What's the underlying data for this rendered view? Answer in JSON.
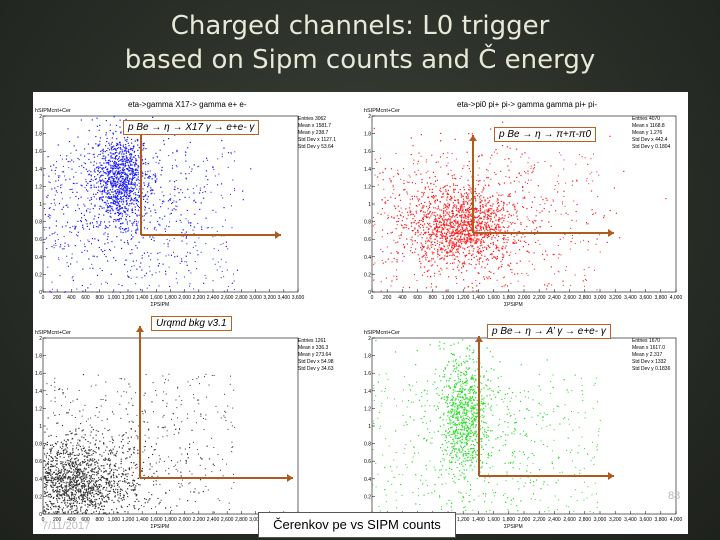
{
  "slide": {
    "title_line1": "Charged channels: L0 trigger",
    "title_line2": "based on Sipm counts and Č energy",
    "date": "7/11/2017",
    "page_number": "88",
    "x_caption": "Čerenkov pe vs SIPM counts"
  },
  "chart_data": [
    {
      "type": "scatter",
      "title": "eta->gamma X17-> gamma e+ e-",
      "annotation": "p Be → η → X17 γ → e+e- γ",
      "hist_name": "hSIPMcnt+Cer",
      "color": "#1a1aff",
      "stats": {
        "Entries": "3062",
        "Mean x": "1581.7",
        "Mean y": "238.7",
        "Std Dev x": "1127.1",
        "Std Dev y": "53.64"
      },
      "xlim": [
        0,
        3600
      ],
      "ylim": [
        0,
        2
      ],
      "xticks": [
        "0",
        "200",
        "400",
        "600",
        "800",
        "1,000",
        "1,200",
        "1,400",
        "1,600",
        "1,800",
        "2,000",
        "2,200",
        "2,400",
        "2,600",
        "2,800",
        "3,000",
        "3,200",
        "3,400",
        "3,600"
      ],
      "yticks": [
        "0",
        "0.2",
        "0.4",
        "0.6",
        "0.8",
        "1",
        "1.2",
        "1.4",
        "1.6",
        "1.8",
        "2"
      ],
      "xlabel": "ΣPSIPM",
      "clusters": [
        {
          "cx": 1100,
          "cy": 1.3,
          "sx": 180,
          "sy": 0.25,
          "n": 900
        },
        {
          "cx": 1100,
          "cy": 1.0,
          "sx": 700,
          "sy": 0.45,
          "n": 600
        }
      ]
    },
    {
      "type": "scatter",
      "title": "eta->pi0 pi+ pi-> gamma gamma pi+ pi-",
      "annotation": "p Be → η → π+π-π0",
      "hist_name": "hSIPMcnt+Cer",
      "color": "#ff1a1a",
      "stats": {
        "Entries": "4070",
        "Mean x": "1168.8",
        "Mean y": "1.276",
        "Std Dev x": "442.4",
        "Std Dev y": "0.1804"
      },
      "xlim": [
        0,
        4000
      ],
      "ylim": [
        0,
        2
      ],
      "xticks": [
        "0",
        "200",
        "400",
        "600",
        "800",
        "1,000",
        "1,200",
        "1,400",
        "1,600",
        "1,800",
        "2,000",
        "2,200",
        "2,400",
        "2,600",
        "2,800",
        "3,000",
        "3,200",
        "3,400",
        "3,600",
        "3,800",
        "4,000"
      ],
      "yticks": [
        "0",
        "0.2",
        "0.4",
        "0.6",
        "0.8",
        "1",
        "1.2",
        "1.4",
        "1.6",
        "1.8",
        "2"
      ],
      "xlabel": "ΣPSIPM",
      "clusters": [
        {
          "cx": 1150,
          "cy": 0.75,
          "sx": 380,
          "sy": 0.22,
          "n": 1300
        },
        {
          "cx": 1200,
          "cy": 0.9,
          "sx": 900,
          "sy": 0.5,
          "n": 400
        }
      ]
    },
    {
      "type": "scatter",
      "title": "",
      "annotation": "Urqmd bkg v3.1",
      "hist_name": "hSIPMcnt+Cer",
      "color": "#333333",
      "stats": {
        "Entries": "1261",
        "Mean x": "336.3",
        "Mean y": "273.64",
        "Std Dev x": "54.98",
        "Std Dev y": "34.63"
      },
      "xlim": [
        0,
        3600
      ],
      "ylim": [
        0,
        2
      ],
      "xticks": [
        "0",
        "200",
        "400",
        "600",
        "800",
        "1,000",
        "1,200",
        "1,400",
        "1,600",
        "1,800",
        "2,000",
        "2,200",
        "2,400",
        "2,600",
        "2,800",
        "3,000",
        "3,200",
        "3,400",
        "3,600"
      ],
      "yticks": [
        "0",
        "0.2",
        "0.4",
        "0.6",
        "0.8",
        "1",
        "1.2",
        "1.4",
        "1.6",
        "1.8",
        "2"
      ],
      "xlabel": "ΣPSIPM",
      "clusters": [
        {
          "cx": 350,
          "cy": 0.35,
          "sx": 450,
          "sy": 0.25,
          "n": 1600
        },
        {
          "cx": 900,
          "cy": 0.6,
          "sx": 700,
          "sy": 0.35,
          "n": 250
        }
      ]
    },
    {
      "type": "scatter",
      "title": "",
      "annotation": "p Be→ η → A’ γ → e+e- γ",
      "hist_name": "hSIPMcnt+Cer",
      "color": "#22dd22",
      "stats": {
        "Entries": "1670",
        "Mean x": "1617.0",
        "Mean y": "2.317",
        "Std Dev x": "1332",
        "Std Dev y": "0.1836"
      },
      "xlim": [
        0,
        4000
      ],
      "ylim": [
        0,
        2
      ],
      "xticks": [
        "0",
        "200",
        "400",
        "600",
        "800",
        "1,000",
        "1,200",
        "1,400",
        "1,600",
        "1,800",
        "2,000",
        "2,200",
        "2,400",
        "2,600",
        "2,800",
        "3,000",
        "3,200",
        "3,400",
        "3,600",
        "3,800",
        "4,000"
      ],
      "yticks": [
        "0",
        "0.2",
        "0.4",
        "0.6",
        "0.8",
        "1",
        "1.2",
        "1.4",
        "1.6",
        "1.8",
        "2"
      ],
      "xlabel": "ΣPSIPM",
      "clusters": [
        {
          "cx": 1200,
          "cy": 1.1,
          "sx": 150,
          "sy": 0.35,
          "n": 700
        },
        {
          "cx": 1300,
          "cy": 0.9,
          "sx": 600,
          "sy": 0.55,
          "n": 300
        }
      ]
    }
  ]
}
